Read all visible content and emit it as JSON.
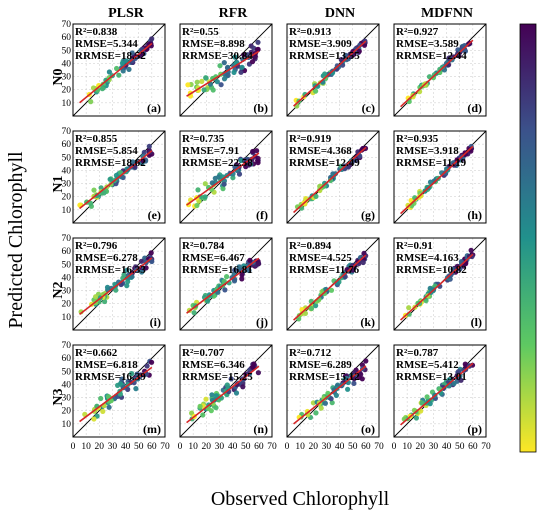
{
  "chart_data": {
    "type": "scatter",
    "xlabel": "Observed Chlorophyll",
    "ylabel": "Predicted Chlorophyll",
    "columns": [
      "PLSR",
      "RFR",
      "DNN",
      "MDFNN"
    ],
    "rows": [
      "N0",
      "N1",
      "N2",
      "N3"
    ],
    "xlim": [
      0,
      70
    ],
    "ylim": [
      0,
      70
    ],
    "x_ticks": [
      "0",
      "10",
      "20",
      "30",
      "40",
      "50",
      "60",
      "70"
    ],
    "y_ticks": [
      "0",
      "10",
      "20",
      "30",
      "40",
      "50",
      "60",
      "70"
    ],
    "grid": true,
    "identity_line": true,
    "fit_line_color": "#d62728",
    "colormap": [
      "#fde725",
      "#5ec962",
      "#21918c",
      "#3b528b",
      "#440154"
    ],
    "panels": [
      {
        "id": "(a)",
        "row": 0,
        "col": 0,
        "r2": "R²=0.838",
        "rmse": "RMSE=5.344",
        "rrmse": "RRMSE=18.52",
        "fit": [
          0.82,
          6
        ],
        "spread": 4.5,
        "seed": 11
      },
      {
        "id": "(b)",
        "row": 0,
        "col": 1,
        "r2": "R²=0.55",
        "rmse": "RMSE=8.898",
        "rrmse": "RRMSE=30.84",
        "fit": [
          0.62,
          12
        ],
        "spread": 8,
        "seed": 12
      },
      {
        "id": "(c)",
        "row": 0,
        "col": 2,
        "r2": "R²=0.913",
        "rmse": "RMSE=3.909",
        "rrmse": "RRMSE=13.55",
        "fit": [
          0.9,
          3
        ],
        "spread": 3,
        "seed": 13
      },
      {
        "id": "(d)",
        "row": 0,
        "col": 3,
        "r2": "R²=0.927",
        "rmse": "RMSE=3.589",
        "rrmse": "RRMSE=12.44",
        "fit": [
          0.92,
          2.5
        ],
        "spread": 2.8,
        "seed": 14
      },
      {
        "id": "(e)",
        "row": 1,
        "col": 0,
        "r2": "R²=0.855",
        "rmse": "RMSE=5.854",
        "rrmse": "RRMSE=18.62",
        "fit": [
          0.8,
          7
        ],
        "spread": 5,
        "seed": 21
      },
      {
        "id": "(f)",
        "row": 1,
        "col": 1,
        "r2": "R²=0.735",
        "rmse": "RMSE=7.91",
        "rrmse": "RRMSE=22.58",
        "fit": [
          0.72,
          10
        ],
        "spread": 6.5,
        "seed": 22
      },
      {
        "id": "(g)",
        "row": 1,
        "col": 2,
        "r2": "R²=0.919",
        "rmse": "RMSE=4.368",
        "rrmse": "RRMSE=12.49",
        "fit": [
          0.9,
          3.5
        ],
        "spread": 3.5,
        "seed": 23
      },
      {
        "id": "(h)",
        "row": 1,
        "col": 3,
        "r2": "R²=0.935",
        "rmse": "RMSE=3.918",
        "rrmse": "RRMSE=11.19",
        "fit": [
          0.93,
          2.5
        ],
        "spread": 3,
        "seed": 24
      },
      {
        "id": "(i)",
        "row": 2,
        "col": 0,
        "r2": "R²=0.796",
        "rmse": "RMSE=6.278",
        "rrmse": "RRMSE=16.33",
        "fit": [
          0.78,
          8
        ],
        "spread": 5.5,
        "seed": 31
      },
      {
        "id": "(j)",
        "row": 2,
        "col": 1,
        "r2": "R²=0.784",
        "rmse": "RMSE=6.467",
        "rrmse": "RRMSE=16.81",
        "fit": [
          0.76,
          9
        ],
        "spread": 5.5,
        "seed": 32
      },
      {
        "id": "(k)",
        "row": 2,
        "col": 2,
        "r2": "R²=0.894",
        "rmse": "RMSE=4.525",
        "rrmse": "RRMSE=11.76",
        "fit": [
          0.9,
          3
        ],
        "spread": 4,
        "seed": 33
      },
      {
        "id": "(l)",
        "row": 2,
        "col": 3,
        "r2": "R²=0.91",
        "rmse": "RMSE=4.163",
        "rrmse": "RRMSE=10.82",
        "fit": [
          0.91,
          3
        ],
        "spread": 3.5,
        "seed": 34
      },
      {
        "id": "(m)",
        "row": 3,
        "col": 0,
        "r2": "R²=0.662",
        "rmse": "RMSE=6.818",
        "rrmse": "RRMSE=16.39",
        "fit": [
          0.75,
          8
        ],
        "spread": 6.5,
        "seed": 41
      },
      {
        "id": "(n)",
        "row": 3,
        "col": 1,
        "r2": "R²=0.707",
        "rmse": "RMSE=6.346",
        "rrmse": "RRMSE=15.25",
        "fit": [
          0.78,
          7
        ],
        "spread": 6,
        "seed": 42
      },
      {
        "id": "(o)",
        "row": 3,
        "col": 2,
        "r2": "R²=0.712",
        "rmse": "RMSE=6.289",
        "rrmse": "RRMSE=15.12",
        "fit": [
          0.8,
          6
        ],
        "spread": 6,
        "seed": 43
      },
      {
        "id": "(p)",
        "row": 3,
        "col": 3,
        "r2": "R²=0.787",
        "rmse": "RMSE=5.412",
        "rrmse": "RRMSE=13.01",
        "fit": [
          0.85,
          5
        ],
        "spread": 5,
        "seed": 44
      }
    ]
  }
}
